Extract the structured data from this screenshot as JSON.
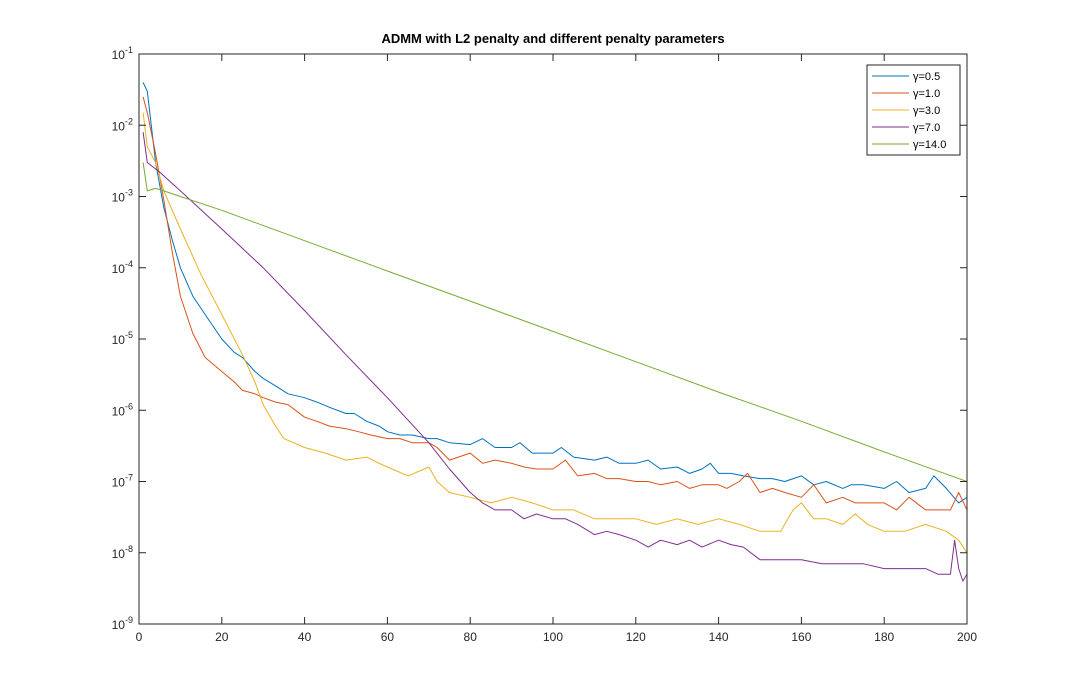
{
  "chart_data": {
    "type": "line",
    "title": "ADMM with L2 penalty and different penalty parameters",
    "xlabel": "",
    "ylabel": "",
    "xlim": [
      0,
      200
    ],
    "ylim": [
      1e-09,
      0.1
    ],
    "yscale": "log",
    "grid": false,
    "legend_position": "top-right",
    "x_ticks": [
      0,
      20,
      40,
      60,
      80,
      100,
      120,
      140,
      160,
      180,
      200
    ],
    "x_tick_labels": [
      "0",
      "20",
      "40",
      "60",
      "80",
      "100",
      "120",
      "140",
      "160",
      "180",
      "200"
    ],
    "y_ticks": [
      1e-09,
      1e-08,
      1e-07,
      1e-06,
      1e-05,
      0.0001,
      0.001,
      0.01,
      0.1
    ],
    "y_tick_labels": [
      {
        "base": "10",
        "exp": "-9"
      },
      {
        "base": "10",
        "exp": "-8"
      },
      {
        "base": "10",
        "exp": "-7"
      },
      {
        "base": "10",
        "exp": "-6"
      },
      {
        "base": "10",
        "exp": "-5"
      },
      {
        "base": "10",
        "exp": "-4"
      },
      {
        "base": "10",
        "exp": "-3"
      },
      {
        "base": "10",
        "exp": "-2"
      },
      {
        "base": "10",
        "exp": "-1"
      }
    ],
    "series": [
      {
        "name": "γ=0.5",
        "color": "#0072BD",
        "x": [
          1,
          2,
          4,
          6,
          8,
          10,
          13,
          16,
          20,
          23,
          25,
          28,
          30,
          33,
          36,
          40,
          43,
          46,
          50,
          52,
          55,
          58,
          60,
          63,
          66,
          70,
          72,
          75,
          80,
          83,
          86,
          90,
          92,
          95,
          100,
          102,
          105,
          110,
          113,
          116,
          120,
          123,
          126,
          130,
          133,
          136,
          138,
          140,
          143,
          146,
          150,
          153,
          156,
          160,
          163,
          166,
          170,
          172,
          175,
          180,
          183,
          186,
          190,
          192,
          195,
          198,
          200
        ],
        "y": [
          0.04,
          0.03,
          0.003,
          0.0007,
          0.00025,
          0.0001,
          4e-05,
          2.2e-05,
          1e-05,
          6.5e-06,
          5.5e-06,
          3.5e-06,
          2.8e-06,
          2.2e-06,
          1.7e-06,
          1.5e-06,
          1.3e-06,
          1.1e-06,
          9e-07,
          9e-07,
          7e-07,
          6e-07,
          5e-07,
          4.5e-07,
          4.5e-07,
          4e-07,
          4e-07,
          3.5e-07,
          3.3e-07,
          4e-07,
          3e-07,
          3e-07,
          3.5e-07,
          2.5e-07,
          2.5e-07,
          3e-07,
          2.2e-07,
          2e-07,
          2.2e-07,
          1.8e-07,
          1.8e-07,
          2e-07,
          1.5e-07,
          1.6e-07,
          1.3e-07,
          1.5e-07,
          1.8e-07,
          1.3e-07,
          1.3e-07,
          1.2e-07,
          1.1e-07,
          1.1e-07,
          1e-07,
          1.2e-07,
          9e-08,
          1e-07,
          8e-08,
          9e-08,
          9e-08,
          8e-08,
          1e-07,
          7e-08,
          8e-08,
          1.2e-07,
          8e-08,
          5e-08,
          6e-08
        ]
      },
      {
        "name": "γ=1.0",
        "color": "#D95319",
        "x": [
          1,
          2,
          4,
          6,
          8,
          10,
          13,
          16,
          20,
          23,
          25,
          28,
          30,
          33,
          36,
          40,
          43,
          46,
          50,
          53,
          56,
          60,
          63,
          66,
          70,
          72,
          75,
          80,
          83,
          86,
          90,
          93,
          96,
          100,
          103,
          106,
          110,
          113,
          116,
          120,
          123,
          126,
          130,
          133,
          136,
          140,
          142,
          145,
          147,
          150,
          153,
          156,
          160,
          163,
          166,
          170,
          173,
          176,
          180,
          183,
          186,
          190,
          193,
          196,
          198,
          200
        ],
        "y": [
          0.025,
          0.015,
          0.004,
          0.0009,
          0.00017,
          4e-05,
          1.2e-05,
          5.5e-06,
          3.5e-06,
          2.5e-06,
          1.9e-06,
          1.7e-06,
          1.5e-06,
          1.3e-06,
          1.2e-06,
          8e-07,
          7e-07,
          6e-07,
          5.5e-07,
          5e-07,
          4.5e-07,
          4e-07,
          4e-07,
          3.5e-07,
          3.5e-07,
          3e-07,
          2e-07,
          2.5e-07,
          1.8e-07,
          2e-07,
          1.8e-07,
          1.6e-07,
          1.5e-07,
          1.5e-07,
          2e-07,
          1.2e-07,
          1.3e-07,
          1.1e-07,
          1.1e-07,
          1e-07,
          1e-07,
          9e-08,
          1e-07,
          8e-08,
          9e-08,
          9e-08,
          8e-08,
          1e-07,
          1.3e-07,
          7e-08,
          8e-08,
          7e-08,
          6e-08,
          9e-08,
          5e-08,
          6e-08,
          5e-08,
          5e-08,
          5e-08,
          4e-08,
          6e-08,
          4e-08,
          4e-08,
          4e-08,
          7e-08,
          4e-08
        ]
      },
      {
        "name": "γ=3.0",
        "color": "#EDB120",
        "x": [
          1,
          2,
          4,
          6,
          10,
          15,
          20,
          25,
          28,
          30,
          33,
          35,
          40,
          45,
          50,
          55,
          58,
          60,
          65,
          70,
          72,
          75,
          80,
          85,
          90,
          95,
          100,
          105,
          110,
          115,
          120,
          125,
          130,
          135,
          140,
          145,
          150,
          155,
          158,
          160,
          163,
          166,
          170,
          173,
          176,
          180,
          185,
          190,
          195,
          198,
          200
        ],
        "y": [
          0.015,
          0.005,
          0.003,
          0.0012,
          0.00035,
          8e-05,
          2.2e-05,
          6e-06,
          2.5e-06,
          1.2e-06,
          6e-07,
          4e-07,
          3e-07,
          2.5e-07,
          2e-07,
          2.2e-07,
          1.8e-07,
          1.6e-07,
          1.2e-07,
          1.6e-07,
          1e-07,
          7e-08,
          6e-08,
          5e-08,
          6e-08,
          5e-08,
          4e-08,
          4e-08,
          3e-08,
          3e-08,
          3e-08,
          2.5e-08,
          3e-08,
          2.5e-08,
          3e-08,
          2.5e-08,
          2e-08,
          2e-08,
          4e-08,
          5e-08,
          3e-08,
          3e-08,
          2.5e-08,
          3.5e-08,
          2.5e-08,
          2e-08,
          2e-08,
          2.5e-08,
          2e-08,
          1.5e-08,
          1e-08
        ]
      },
      {
        "name": "γ=7.0",
        "color": "#7E2F8E",
        "x": [
          1,
          2,
          5,
          10,
          20,
          30,
          40,
          50,
          60,
          70,
          75,
          80,
          83,
          86,
          90,
          93,
          96,
          100,
          103,
          106,
          110,
          113,
          116,
          120,
          123,
          126,
          130,
          133,
          136,
          140,
          143,
          146,
          150,
          153,
          156,
          160,
          165,
          170,
          175,
          180,
          185,
          190,
          193,
          196,
          197,
          198,
          199,
          200
        ],
        "y": [
          0.008,
          0.003,
          0.0022,
          0.0012,
          0.00035,
          0.0001,
          2.5e-05,
          6e-06,
          1.5e-06,
          3.5e-07,
          1.5e-07,
          7e-08,
          5e-08,
          4e-08,
          4e-08,
          3e-08,
          3.5e-08,
          3e-08,
          3e-08,
          2.5e-08,
          1.8e-08,
          2e-08,
          1.8e-08,
          1.5e-08,
          1.2e-08,
          1.5e-08,
          1.3e-08,
          1.5e-08,
          1.2e-08,
          1.5e-08,
          1.3e-08,
          1.2e-08,
          8e-09,
          8e-09,
          8e-09,
          8e-09,
          7e-09,
          7e-09,
          7e-09,
          6e-09,
          6e-09,
          6e-09,
          5e-09,
          5e-09,
          1.5e-08,
          6e-09,
          4e-09,
          5e-09
        ]
      },
      {
        "name": "γ=14.0",
        "color": "#77AC30",
        "x": [
          1,
          2,
          4,
          6,
          10,
          20,
          40,
          60,
          80,
          100,
          120,
          140,
          160,
          180,
          200
        ],
        "y": [
          0.003,
          0.0012,
          0.0013,
          0.0012,
          0.001,
          0.00064,
          0.00024,
          9e-05,
          3.4e-05,
          1.28e-05,
          4.8e-06,
          1.8e-06,
          7e-07,
          2.6e-07,
          1e-07
        ]
      }
    ]
  }
}
